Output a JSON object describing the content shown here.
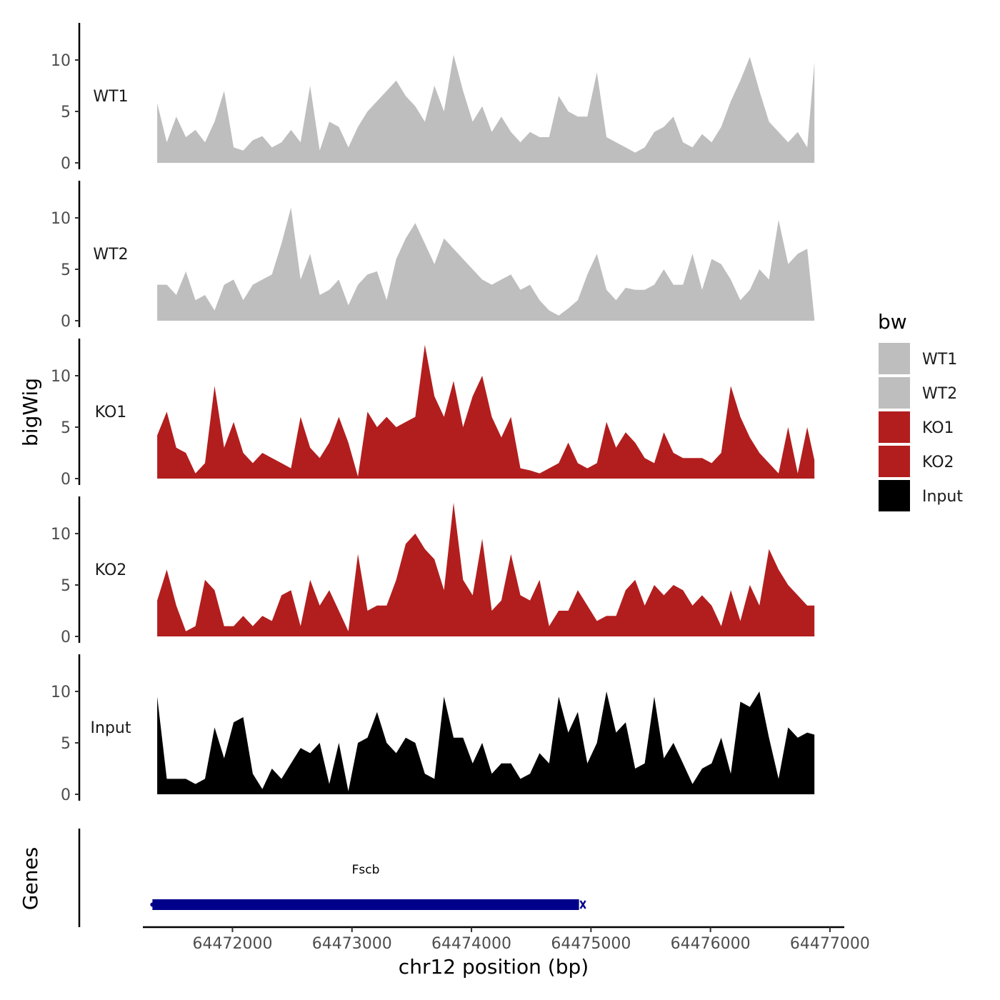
{
  "chart_data": {
    "type": "area",
    "xlabel": "chr12 position (bp)",
    "ylabel": "bigWig",
    "genes_label": "Genes",
    "xlim": [
      64471250,
      64477120
    ],
    "ylim": [
      0,
      13
    ],
    "x_ticks": [
      64472000,
      64473000,
      64474000,
      64475000,
      64476000,
      64477000
    ],
    "x_tick_labels": [
      "64472000",
      "64473000",
      "64474000",
      "64475000",
      "64476000",
      "64477000"
    ],
    "y_ticks": [
      0,
      5,
      10
    ],
    "y_tick_labels": [
      "0",
      "5",
      "10"
    ],
    "legend": {
      "title": "bw",
      "entries": [
        {
          "label": "WT1",
          "color": "#bebebe"
        },
        {
          "label": "WT2",
          "color": "#bebebe"
        },
        {
          "label": "KO1",
          "color": "#b21e1e"
        },
        {
          "label": "KO2",
          "color": "#b21e1e"
        },
        {
          "label": "Input",
          "color": "#000000"
        }
      ]
    },
    "gene": {
      "name": "Fscb",
      "start": 64471330,
      "end": 64474900,
      "strand": "-",
      "color": "#00008b"
    },
    "series": [
      {
        "name": "WT1",
        "color": "#bebebe",
        "x": [
          64471370,
          64471450,
          64471530,
          64471610,
          64471690,
          64471770,
          64471850,
          64471930,
          64472010,
          64472090,
          64472170,
          64472250,
          64472330,
          64472410,
          64472490,
          64472570,
          64472650,
          64472730,
          64472810,
          64472890,
          64472970,
          64473050,
          64473130,
          64473210,
          64473290,
          64473370,
          64473450,
          64473530,
          64473610,
          64473690,
          64473770,
          64473850,
          64473930,
          64474010,
          64474090,
          64474170,
          64474250,
          64474330,
          64474410,
          64474490,
          64474570,
          64474650,
          64474730,
          64474810,
          64474890,
          64474970,
          64475050,
          64475130,
          64475210,
          64475290,
          64475370,
          64475450,
          64475530,
          64475610,
          64475690,
          64475770,
          64475850,
          64475930,
          64476010,
          64476090,
          64476170,
          64476250,
          64476330,
          64476410,
          64476490,
          64476570,
          64476650,
          64476730,
          64476810,
          64476870
        ],
        "values": [
          5.8,
          2.0,
          4.5,
          2.5,
          3.2,
          2.0,
          4.0,
          7.0,
          1.5,
          1.2,
          2.2,
          2.6,
          1.5,
          2.0,
          3.2,
          2.0,
          7.5,
          1.2,
          4.0,
          3.5,
          1.5,
          3.5,
          5.0,
          6.0,
          7.0,
          8.0,
          6.5,
          5.5,
          4.0,
          7.5,
          5.0,
          10.5,
          7.0,
          4.0,
          5.5,
          3.0,
          4.5,
          3.0,
          2.0,
          3.0,
          2.5,
          2.5,
          6.5,
          5.0,
          4.5,
          4.5,
          8.8,
          2.5,
          2.0,
          1.5,
          1.0,
          1.5,
          3.0,
          3.5,
          4.5,
          2.0,
          1.5,
          2.8,
          2.0,
          3.5,
          6.0,
          8.0,
          10.3,
          7.0,
          4.0,
          3.0,
          2.0,
          3.0,
          1.5,
          9.8
        ]
      },
      {
        "name": "WT2",
        "color": "#bebebe",
        "x": [
          64471370,
          64471450,
          64471530,
          64471610,
          64471690,
          64471770,
          64471850,
          64471930,
          64472010,
          64472090,
          64472170,
          64472250,
          64472330,
          64472410,
          64472490,
          64472570,
          64472650,
          64472730,
          64472810,
          64472890,
          64472970,
          64473050,
          64473130,
          64473210,
          64473290,
          64473370,
          64473450,
          64473530,
          64473610,
          64473690,
          64473770,
          64473850,
          64473930,
          64474010,
          64474090,
          64474170,
          64474250,
          64474330,
          64474410,
          64474490,
          64474570,
          64474650,
          64474730,
          64474810,
          64474890,
          64474970,
          64475050,
          64475130,
          64475210,
          64475290,
          64475370,
          64475450,
          64475530,
          64475610,
          64475690,
          64475770,
          64475850,
          64475930,
          64476010,
          64476090,
          64476170,
          64476250,
          64476330,
          64476410,
          64476490,
          64476570,
          64476650,
          64476730,
          64476810,
          64476870
        ],
        "values": [
          3.5,
          3.5,
          2.5,
          4.8,
          2.0,
          2.5,
          1.0,
          3.5,
          4.0,
          2.0,
          3.5,
          4.0,
          4.5,
          7.5,
          11.0,
          4.0,
          6.5,
          2.5,
          3.0,
          4.0,
          1.5,
          3.5,
          4.5,
          4.8,
          2.0,
          6.0,
          8.0,
          9.5,
          7.5,
          5.5,
          8.0,
          7.0,
          6.0,
          5.0,
          4.0,
          3.5,
          4.0,
          4.5,
          3.0,
          3.5,
          2.0,
          1.0,
          0.5,
          1.2,
          2.0,
          4.5,
          6.5,
          3.0,
          2.0,
          3.2,
          3.0,
          3.0,
          3.5,
          5.0,
          3.5,
          3.5,
          6.5,
          3.0,
          6.0,
          5.5,
          4.0,
          2.0,
          3.0,
          5.0,
          4.0,
          9.8,
          5.5,
          6.5,
          7.0,
          0.2
        ]
      },
      {
        "name": "KO1",
        "color": "#b21e1e",
        "x": [
          64471370,
          64471450,
          64471530,
          64471610,
          64471690,
          64471770,
          64471850,
          64471930,
          64472010,
          64472090,
          64472170,
          64472250,
          64472330,
          64472410,
          64472490,
          64472570,
          64472650,
          64472730,
          64472810,
          64472890,
          64472970,
          64473050,
          64473130,
          64473210,
          64473290,
          64473370,
          64473450,
          64473530,
          64473610,
          64473690,
          64473770,
          64473850,
          64473930,
          64474010,
          64474090,
          64474170,
          64474250,
          64474330,
          64474410,
          64474490,
          64474570,
          64474650,
          64474730,
          64474810,
          64474890,
          64474970,
          64475050,
          64475130,
          64475210,
          64475290,
          64475370,
          64475450,
          64475530,
          64475610,
          64475690,
          64475770,
          64475850,
          64475930,
          64476010,
          64476090,
          64476170,
          64476250,
          64476330,
          64476410,
          64476490,
          64476570,
          64476650,
          64476730,
          64476810,
          64476870
        ],
        "values": [
          4.2,
          6.5,
          3.0,
          2.5,
          0.5,
          1.5,
          9.0,
          3.0,
          5.5,
          2.5,
          1.5,
          2.5,
          2.0,
          1.5,
          1.0,
          6.0,
          3.0,
          2.0,
          3.5,
          6.0,
          3.5,
          0.2,
          6.5,
          5.0,
          6.0,
          5.0,
          5.5,
          6.0,
          13.0,
          8.0,
          6.0,
          9.5,
          5.0,
          8.0,
          10.0,
          6.0,
          4.0,
          6.0,
          1.0,
          0.8,
          0.5,
          1.0,
          1.5,
          3.5,
          1.5,
          1.0,
          1.5,
          5.5,
          3.0,
          4.5,
          3.5,
          2.0,
          1.5,
          4.5,
          2.5,
          2.0,
          2.0,
          2.0,
          1.5,
          2.5,
          9.0,
          6.0,
          4.0,
          2.5,
          1.5,
          0.5,
          5.0,
          0.5,
          5.0,
          1.8
        ]
      },
      {
        "name": "KO2",
        "color": "#b21e1e",
        "x": [
          64471370,
          64471450,
          64471530,
          64471610,
          64471690,
          64471770,
          64471850,
          64471930,
          64472010,
          64472090,
          64472170,
          64472250,
          64472330,
          64472410,
          64472490,
          64472570,
          64472650,
          64472730,
          64472810,
          64472890,
          64472970,
          64473050,
          64473130,
          64473210,
          64473290,
          64473370,
          64473450,
          64473530,
          64473610,
          64473690,
          64473770,
          64473850,
          64473930,
          64474010,
          64474090,
          64474170,
          64474250,
          64474330,
          64474410,
          64474490,
          64474570,
          64474650,
          64474730,
          64474810,
          64474890,
          64474970,
          64475050,
          64475130,
          64475210,
          64475290,
          64475370,
          64475450,
          64475530,
          64475610,
          64475690,
          64475770,
          64475850,
          64475930,
          64476010,
          64476090,
          64476170,
          64476250,
          64476330,
          64476410,
          64476490,
          64476570,
          64476650,
          64476730,
          64476810,
          64476870
        ],
        "values": [
          3.5,
          6.5,
          3.0,
          0.5,
          1.0,
          5.5,
          4.5,
          1.0,
          1.0,
          2.0,
          1.0,
          2.0,
          1.5,
          4.0,
          4.5,
          1.0,
          5.5,
          3.0,
          4.5,
          2.5,
          0.5,
          8.0,
          2.5,
          3.0,
          3.0,
          5.5,
          9.0,
          10.0,
          8.5,
          7.5,
          4.5,
          13.0,
          5.5,
          4.0,
          9.5,
          2.5,
          3.5,
          8.0,
          4.0,
          3.5,
          5.5,
          1.0,
          2.5,
          2.5,
          4.5,
          3.0,
          1.5,
          2.0,
          2.0,
          4.5,
          5.5,
          3.0,
          5.0,
          4.0,
          5.0,
          4.5,
          3.0,
          4.0,
          3.0,
          1.0,
          4.5,
          1.5,
          5.0,
          3.0,
          8.5,
          6.5,
          5.0,
          4.0,
          3.0,
          3.0
        ]
      },
      {
        "name": "Input",
        "color": "#000000",
        "x": [
          64471370,
          64471450,
          64471530,
          64471610,
          64471690,
          64471770,
          64471850,
          64471930,
          64472010,
          64472090,
          64472170,
          64472250,
          64472330,
          64472410,
          64472490,
          64472570,
          64472650,
          64472730,
          64472810,
          64472890,
          64472970,
          64473050,
          64473130,
          64473210,
          64473290,
          64473370,
          64473450,
          64473530,
          64473610,
          64473690,
          64473770,
          64473850,
          64473930,
          64474010,
          64474090,
          64474170,
          64474250,
          64474330,
          64474410,
          64474490,
          64474570,
          64474650,
          64474730,
          64474810,
          64474890,
          64474970,
          64475050,
          64475130,
          64475210,
          64475290,
          64475370,
          64475450,
          64475530,
          64475610,
          64475690,
          64475770,
          64475850,
          64475930,
          64476010,
          64476090,
          64476170,
          64476250,
          64476330,
          64476410,
          64476490,
          64476570,
          64476650,
          64476730,
          64476810,
          64476870
        ],
        "values": [
          9.5,
          1.5,
          1.5,
          1.5,
          1.0,
          1.5,
          6.5,
          3.5,
          7.0,
          7.5,
          2.0,
          0.5,
          2.5,
          1.5,
          3.0,
          4.5,
          4.0,
          5.0,
          1.0,
          5.0,
          0.3,
          5.0,
          5.5,
          8.0,
          5.0,
          4.0,
          5.5,
          5.0,
          2.0,
          1.5,
          9.5,
          5.5,
          5.5,
          3.0,
          5.0,
          2.0,
          3.0,
          3.0,
          1.5,
          2.0,
          4.0,
          3.0,
          9.5,
          6.0,
          8.0,
          3.0,
          5.0,
          10.0,
          6.0,
          7.0,
          2.5,
          3.0,
          9.5,
          3.5,
          5.0,
          3.0,
          1.0,
          2.5,
          3.0,
          5.5,
          2.0,
          9.0,
          8.5,
          10.0,
          5.5,
          1.5,
          6.5,
          5.5,
          6.0,
          5.8
        ]
      }
    ]
  }
}
